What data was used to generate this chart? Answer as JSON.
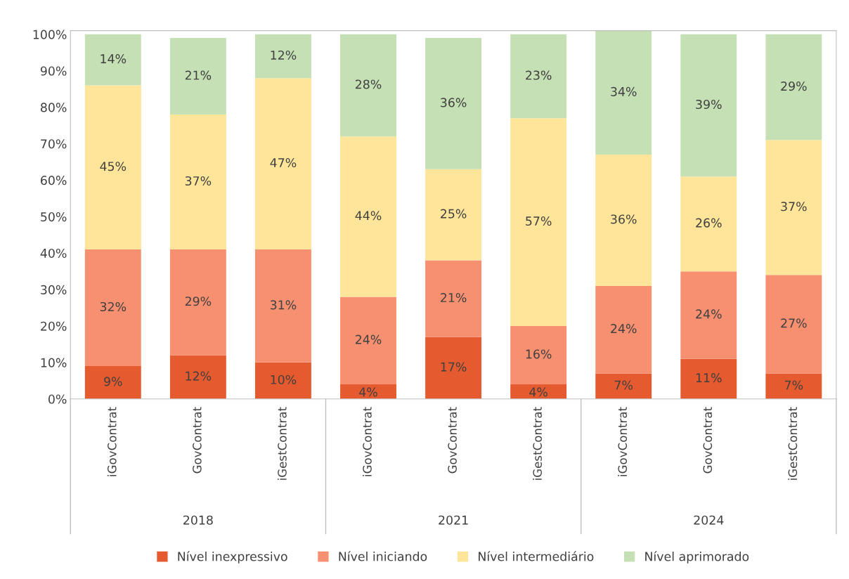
{
  "chart_data": {
    "type": "bar",
    "stacked": true,
    "categories": [
      "iGovContrat",
      "GovContrat",
      "iGestContrat",
      "iGovContrat",
      "GovContrat",
      "iGestContrat",
      "iGovContrat",
      "GovContrat",
      "iGestContrat"
    ],
    "series": [
      {
        "name": "Nível inexpressivo",
        "color": "#e55a2e",
        "values": [
          9,
          12,
          10,
          4,
          17,
          4,
          7,
          11,
          7
        ],
        "value_labels": [
          "9%",
          "12%",
          "10%",
          "4%",
          "17%",
          "4%",
          "7%",
          "11%",
          "7%"
        ]
      },
      {
        "name": "Nível iniciando",
        "color": "#f79070",
        "values": [
          32,
          29,
          31,
          24,
          21,
          16,
          24,
          24,
          27
        ],
        "value_labels": [
          "32%",
          "29%",
          "31%",
          "24%",
          "21%",
          "16%",
          "24%",
          "24%",
          "27%"
        ]
      },
      {
        "name": "Nível intermediário",
        "color": "#fee599",
        "values": [
          45,
          37,
          47,
          44,
          25,
          57,
          36,
          26,
          37
        ],
        "value_labels": [
          "45%",
          "37%",
          "47%",
          "44%",
          "25%",
          "57%",
          "36%",
          "26%",
          "37%"
        ]
      },
      {
        "name": "Nível aprimorado",
        "color": "#c5e0b4",
        "values": [
          14,
          21,
          12,
          28,
          36,
          23,
          34,
          39,
          29
        ],
        "value_labels": [
          "14%",
          "21%",
          "12%",
          "28%",
          "36%",
          "23%",
          "34%",
          "39%",
          "29%"
        ]
      }
    ],
    "ylim": [
      0,
      101
    ],
    "yticks": [
      {
        "value": 0,
        "label": "0%"
      },
      {
        "value": 10,
        "label": "10%"
      },
      {
        "value": 20,
        "label": "20%"
      },
      {
        "value": 30,
        "label": "30%"
      },
      {
        "value": 40,
        "label": "40%"
      },
      {
        "value": 50,
        "label": "50%"
      },
      {
        "value": 60,
        "label": "60%"
      },
      {
        "value": 70,
        "label": "70%"
      },
      {
        "value": 80,
        "label": "80%"
      },
      {
        "value": 90,
        "label": "90%"
      },
      {
        "value": 100,
        "label": "100%"
      }
    ],
    "annotations": [
      "2018",
      "2021",
      "2024"
    ],
    "grid": false,
    "legend": "bottom"
  }
}
